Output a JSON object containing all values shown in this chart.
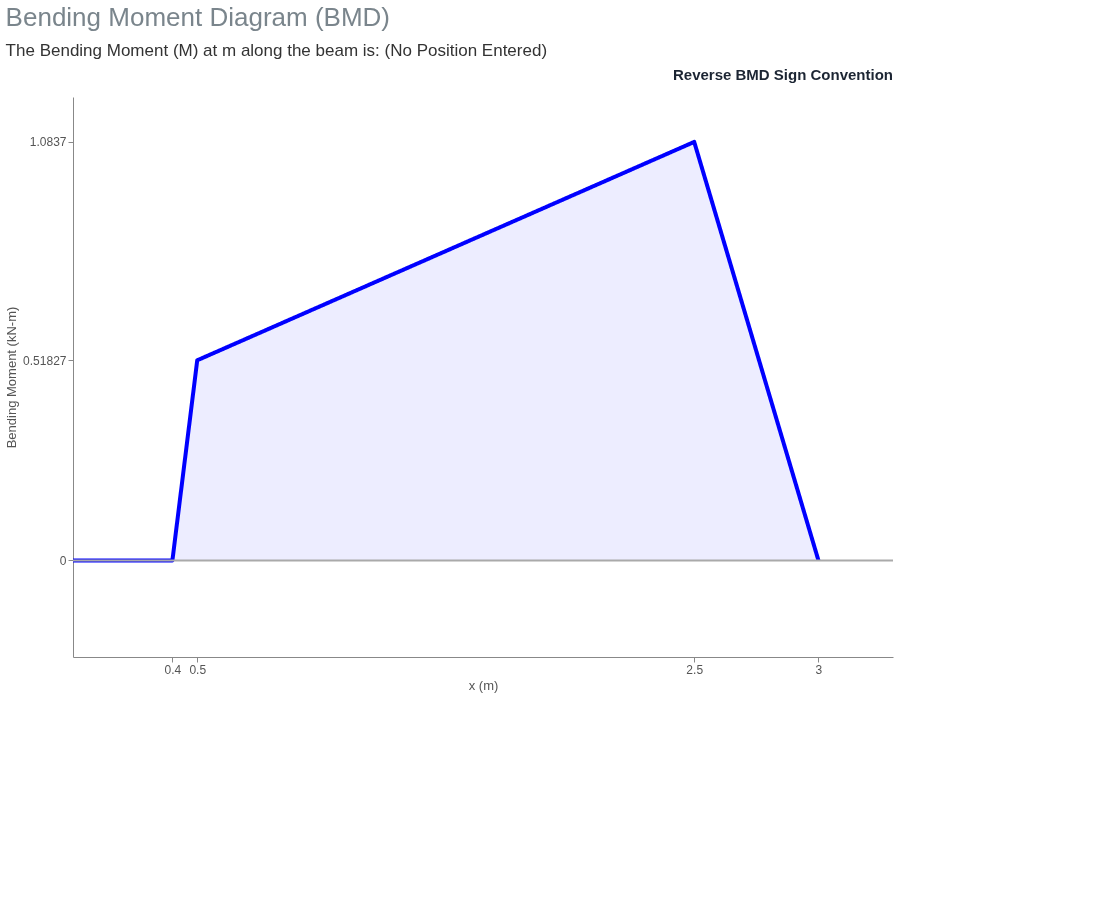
{
  "chart_data": {
    "type": "area",
    "title": "Bending Moment Diagram (BMD)",
    "subtitle": "The Bending Moment (M) at m along the beam is: (No Position Entered)",
    "annotations": [
      "Reverse BMD Sign Convention"
    ],
    "xlabel": "x (m)",
    "ylabel": "Bending Moment (kN-m)",
    "x": [
      0,
      0.4,
      0.5,
      2.5,
      3
    ],
    "series": [
      {
        "color": "#0000ff",
        "values": [
          0,
          0,
          0.51827,
          1.0837,
          0
        ]
      }
    ],
    "xlim": [
      0,
      3.3
    ],
    "xticks": [
      0.4,
      0.5,
      2.5,
      3
    ],
    "ylim": [
      -0.25,
      1.2
    ],
    "yticks": [
      0,
      0.51827,
      1.0837
    ],
    "ref_lines": [
      {
        "axis": "y",
        "value": 0,
        "label": null,
        "color": "#aaaaaa",
        "line_style": "solid"
      }
    ],
    "grid": false,
    "marker": "none",
    "line_style": "solid"
  }
}
